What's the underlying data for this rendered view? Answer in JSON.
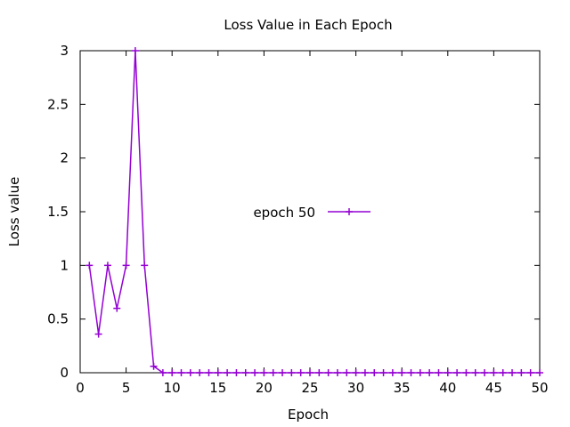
{
  "chart_data": {
    "type": "line",
    "title": "Loss Value in Each Epoch",
    "xlabel": "Epoch",
    "ylabel": "Loss value",
    "xlim": [
      0,
      50
    ],
    "ylim": [
      0,
      3
    ],
    "xticks": [
      "0",
      "5",
      "10",
      "15",
      "20",
      "25",
      "30",
      "35",
      "40",
      "45",
      "50"
    ],
    "yticks": [
      "0",
      "0.5",
      "1",
      "1.5",
      "2",
      "2.5",
      "3"
    ],
    "grid": false,
    "legend_position": "center",
    "series": [
      {
        "name": "epoch 50",
        "color": "#9400d3",
        "marker": "plus",
        "x": [
          1,
          2,
          3,
          4,
          5,
          6,
          7,
          8,
          9,
          10,
          11,
          12,
          13,
          14,
          15,
          16,
          17,
          18,
          19,
          20,
          21,
          22,
          23,
          24,
          25,
          26,
          27,
          28,
          29,
          30,
          31,
          32,
          33,
          34,
          35,
          36,
          37,
          38,
          39,
          40,
          41,
          42,
          43,
          44,
          45,
          46,
          47,
          48,
          49,
          50
        ],
        "y": [
          1.0,
          0.36,
          1.0,
          0.6,
          1.0,
          3.0,
          1.0,
          0.06,
          0,
          0,
          0,
          0,
          0,
          0,
          0,
          0,
          0,
          0,
          0,
          0,
          0,
          0,
          0,
          0,
          0,
          0,
          0,
          0,
          0,
          0,
          0,
          0,
          0,
          0,
          0,
          0,
          0,
          0,
          0,
          0,
          0,
          0,
          0,
          0,
          0,
          0,
          0,
          0,
          0,
          0
        ]
      }
    ]
  }
}
